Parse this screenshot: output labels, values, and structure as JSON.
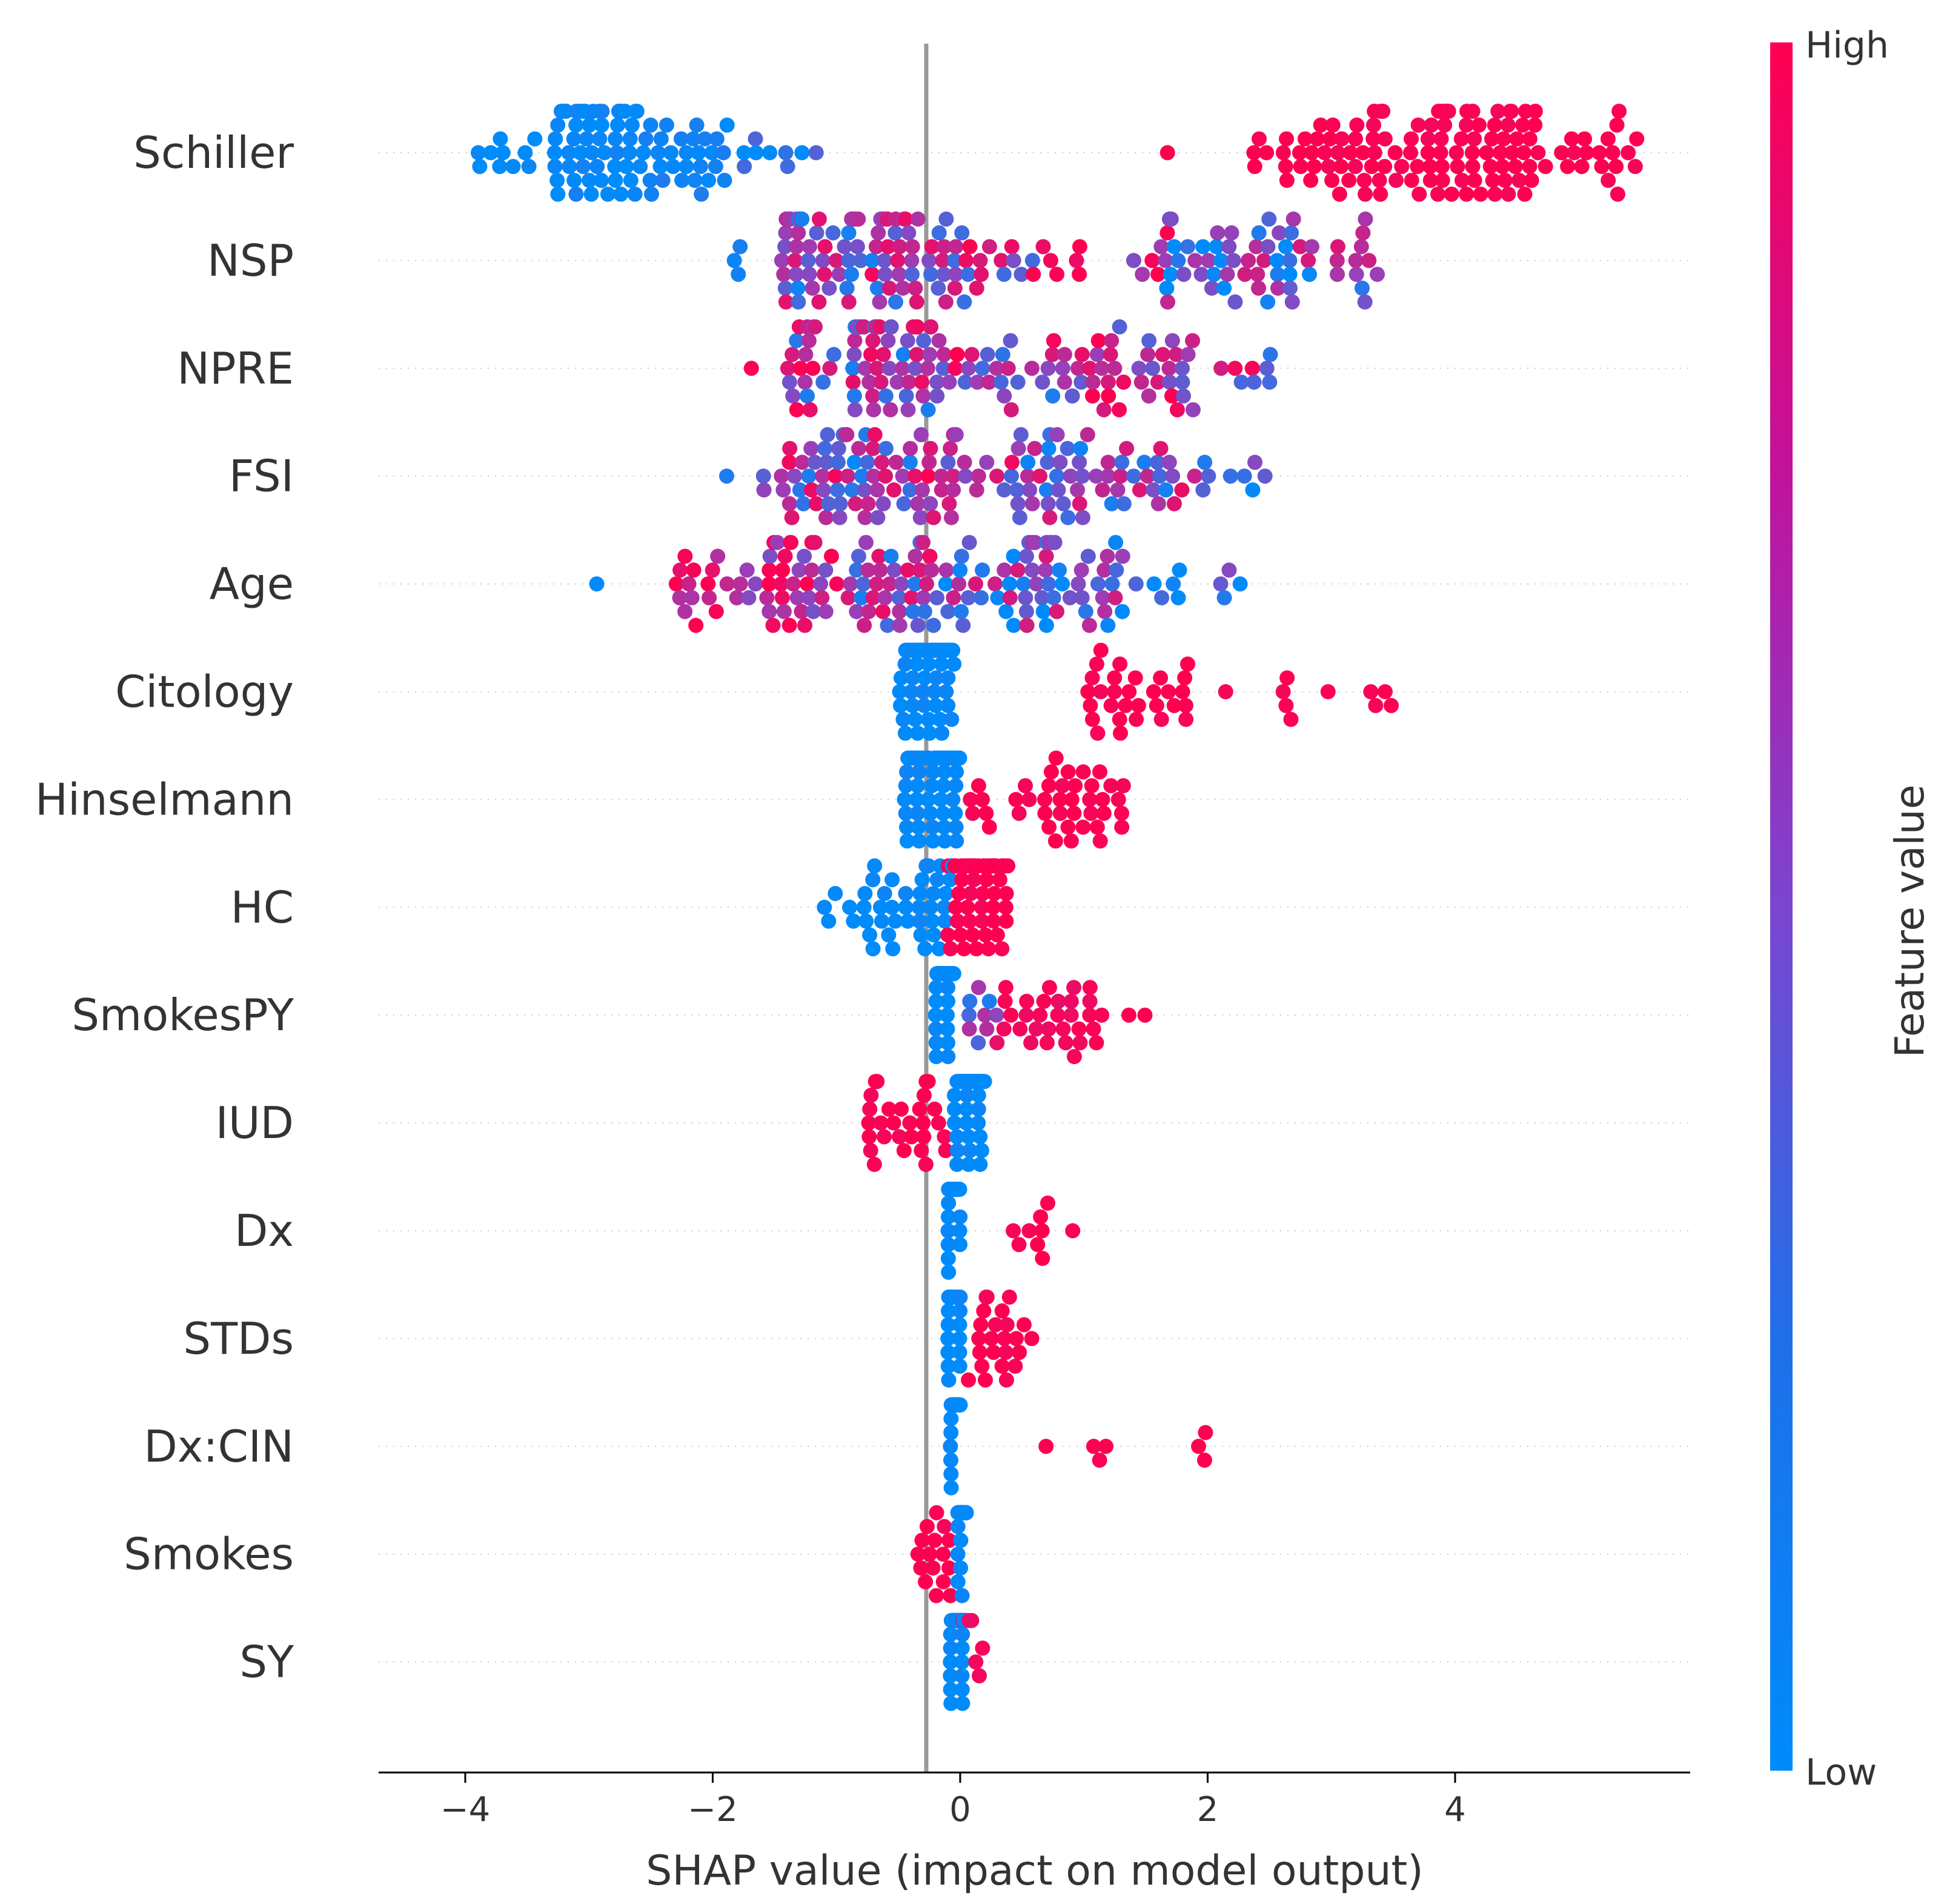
{
  "chart_data": {
    "type": "scatter",
    "subtype": "shap-beeswarm",
    "xlabel": "SHAP value (impact on model output)",
    "xlim": [
      -4.7,
      5.9
    ],
    "xticks": [
      -4,
      -2,
      0,
      2,
      4
    ],
    "xtick_labels": [
      "−4",
      "−2",
      "0",
      "2",
      "4"
    ],
    "colorbar": {
      "title": "Feature value",
      "high_label": "High",
      "low_label": "Low",
      "low_color": "#008bfb",
      "high_color": "#ff0051",
      "mid_color": "#9a3fb8"
    },
    "zero_line_color": "#999999",
    "grid": "dotted horizontal per feature",
    "features": [
      {
        "name": "Schiller",
        "seed": 11,
        "pts": [
          [
            -3.95,
            -3.3,
            0.0,
            10
          ],
          [
            -3.3,
            -2.6,
            0.02,
            55
          ],
          [
            -2.6,
            -1.9,
            0.05,
            30
          ],
          [
            -1.9,
            -1.15,
            0.08,
            10
          ],
          [
            1.65,
            1.7,
            1.0,
            1
          ],
          [
            2.35,
            3.4,
            1.0,
            40
          ],
          [
            3.4,
            4.7,
            1.0,
            75
          ],
          [
            4.7,
            5.5,
            1.0,
            20
          ]
        ]
      },
      {
        "name": "NSP",
        "seed": 23,
        "pts": [
          [
            -1.85,
            -1.75,
            0.05,
            3
          ],
          [
            -1.45,
            -0.9,
            0.45,
            40
          ],
          [
            -0.9,
            -0.3,
            0.5,
            45
          ],
          [
            -0.3,
            0.6,
            0.6,
            30
          ],
          [
            0.6,
            1.0,
            0.95,
            6
          ],
          [
            1.3,
            1.7,
            0.85,
            6
          ],
          [
            1.65,
            2.3,
            0.25,
            25
          ],
          [
            2.3,
            2.9,
            0.4,
            25
          ],
          [
            2.9,
            3.5,
            0.55,
            12
          ]
        ]
      },
      {
        "name": "NPRE",
        "seed": 37,
        "pts": [
          [
            -1.7,
            -1.65,
            1.0,
            1
          ],
          [
            -1.4,
            -0.9,
            0.55,
            20
          ],
          [
            -0.9,
            -0.2,
            0.5,
            55
          ],
          [
            -0.2,
            0.45,
            0.55,
            22
          ],
          [
            0.45,
            1.0,
            0.5,
            14
          ],
          [
            1.0,
            1.9,
            0.7,
            35
          ],
          [
            1.9,
            2.6,
            0.55,
            8
          ]
        ]
      },
      {
        "name": "FSI",
        "seed": 41,
        "pts": [
          [
            -1.9,
            -1.85,
            0.05,
            1
          ],
          [
            -1.6,
            -1.0,
            0.55,
            25
          ],
          [
            -1.0,
            -0.3,
            0.45,
            40
          ],
          [
            -0.3,
            0.5,
            0.6,
            30
          ],
          [
            0.5,
            1.5,
            0.4,
            40
          ],
          [
            1.5,
            2.2,
            0.45,
            16
          ],
          [
            2.2,
            2.5,
            0.1,
            4
          ]
        ]
      },
      {
        "name": "Age",
        "seed": 53,
        "pts": [
          [
            -2.95,
            -2.9,
            0.05,
            1
          ],
          [
            -2.3,
            -1.6,
            0.85,
            20
          ],
          [
            -1.6,
            -0.9,
            0.75,
            35
          ],
          [
            -0.9,
            -0.2,
            0.5,
            40
          ],
          [
            -0.2,
            0.7,
            0.4,
            40
          ],
          [
            0.7,
            1.3,
            0.4,
            25
          ],
          [
            1.3,
            1.8,
            0.1,
            8
          ],
          [
            2.1,
            2.35,
            0.1,
            4
          ]
        ]
      },
      {
        "name": "Citology",
        "seed": 61,
        "pts": [
          [
            -0.5,
            -0.05,
            0.0,
            110
          ],
          [
            0.98,
            1.85,
            1.0,
            30
          ],
          [
            2.1,
            2.15,
            1.0,
            1
          ],
          [
            2.5,
            2.7,
            1.0,
            4
          ],
          [
            2.95,
            3.0,
            1.0,
            1
          ],
          [
            3.25,
            3.6,
            1.0,
            4
          ]
        ]
      },
      {
        "name": "Hinselmann",
        "seed": 67,
        "pts": [
          [
            -0.45,
            0.0,
            0.0,
            110
          ],
          [
            0.05,
            0.25,
            1.0,
            6
          ],
          [
            0.45,
            1.35,
            1.0,
            35
          ]
        ]
      },
      {
        "name": "HC",
        "seed": 71,
        "pts": [
          [
            -1.15,
            -0.95,
            0.0,
            3
          ],
          [
            -0.9,
            -0.3,
            0.0,
            25
          ],
          [
            -0.3,
            -0.05,
            0.02,
            20
          ],
          [
            -0.1,
            0.4,
            1.0,
            80
          ]
        ]
      },
      {
        "name": "SmokesPY",
        "seed": 79,
        "pts": [
          [
            -0.2,
            -0.05,
            0.0,
            90
          ],
          [
            0.05,
            0.35,
            0.5,
            10
          ],
          [
            0.35,
            1.15,
            0.95,
            30
          ],
          [
            1.35,
            1.55,
            1.0,
            2
          ]
        ]
      },
      {
        "name": "IUD",
        "seed": 83,
        "pts": [
          [
            -0.75,
            -0.1,
            1.0,
            30
          ],
          [
            -0.05,
            0.2,
            0.0,
            110
          ]
        ]
      },
      {
        "name": "Dx",
        "seed": 89,
        "pts": [
          [
            -0.1,
            0.0,
            0.0,
            90
          ],
          [
            0.4,
            0.8,
            1.0,
            8
          ],
          [
            0.9,
            0.95,
            1.0,
            1
          ]
        ]
      },
      {
        "name": "STDs",
        "seed": 97,
        "pts": [
          [
            -0.1,
            0.0,
            0.0,
            90
          ],
          [
            0.05,
            0.5,
            1.0,
            22
          ],
          [
            0.5,
            0.6,
            1.0,
            2
          ]
        ]
      },
      {
        "name": "Dx:CIN",
        "seed": 101,
        "pts": [
          [
            -0.08,
            0.0,
            0.0,
            90
          ],
          [
            0.68,
            0.7,
            1.0,
            1
          ],
          [
            1.05,
            1.2,
            1.0,
            3
          ],
          [
            1.9,
            2.0,
            1.0,
            3
          ]
        ]
      },
      {
        "name": "Smokes",
        "seed": 103,
        "pts": [
          [
            -0.35,
            -0.05,
            1.0,
            16
          ],
          [
            -0.02,
            0.05,
            0.0,
            110
          ]
        ]
      },
      {
        "name": "SY",
        "seed": 107,
        "pts": [
          [
            -0.08,
            0.05,
            0.0,
            90
          ],
          [
            -0.1,
            0.2,
            0.95,
            8
          ]
        ]
      }
    ]
  }
}
